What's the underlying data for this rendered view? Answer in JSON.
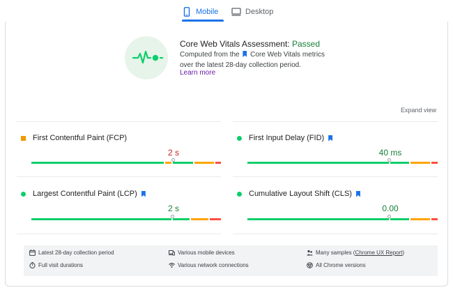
{
  "tabs": [
    {
      "label": "Mobile",
      "icon": "smartphone-icon",
      "active": true
    },
    {
      "label": "Desktop",
      "icon": "desktop-icon",
      "active": false
    }
  ],
  "assessment": {
    "title": "Core Web Vitals Assessment:",
    "status": "Passed",
    "desc_before": "Computed from the",
    "desc_after": "Core Web Vitals metrics over the latest 28-day collection period.",
    "link": "Learn more"
  },
  "expand_view": "Expand view",
  "metrics": [
    {
      "label": "First Contentful Paint (FCP)",
      "value": "2 s",
      "status": "needs-improvement",
      "value_color": "#c5221f",
      "core": false
    },
    {
      "label": "First Input Delay (FID)",
      "value": "40 ms",
      "status": "good",
      "value_color": "#188038",
      "core": true
    },
    {
      "label": "Largest Contentful Paint (LCP)",
      "value": "2 s",
      "status": "good",
      "value_color": "#188038",
      "core": true
    },
    {
      "label": "Cumulative Layout Shift (CLS)",
      "value": "0.00",
      "status": "good",
      "value_color": "#188038",
      "core": true
    }
  ],
  "footer": {
    "period": "Latest 28-day collection period",
    "devices": "Various mobile devices",
    "samples_prefix": "Many samples (",
    "samples_link": "Chrome UX Report",
    "samples_suffix": ")",
    "durations": "Full visit durations",
    "network": "Various network connections",
    "versions": "All Chrome versions"
  },
  "colors": {
    "accent": "#1a73e8",
    "good": "#0cce6b",
    "needs_improvement": "#ffa400",
    "poor": "#ff4e42"
  }
}
